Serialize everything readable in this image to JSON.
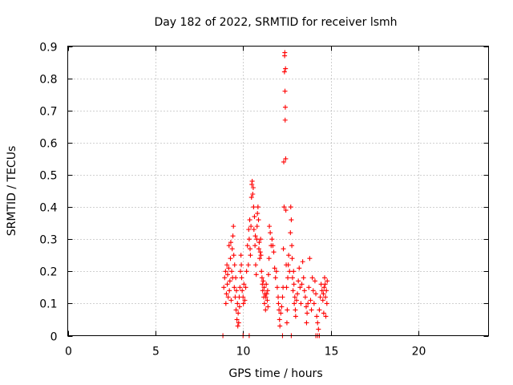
{
  "chart_data": {
    "type": "scatter",
    "title": "Day 182 of 2022, SRMTID for receiver lsmh",
    "xlabel": "GPS time / hours",
    "ylabel": "SRMTID / TECUs",
    "xlim": [
      0,
      24
    ],
    "ylim": [
      0,
      0.9
    ],
    "xticks": [
      "0",
      "5",
      "10",
      "15",
      "20"
    ],
    "xtick_values": [
      0,
      5,
      10,
      15,
      20
    ],
    "yticks": [
      "0",
      "0.1",
      "0.2",
      "0.3",
      "0.4",
      "0.5",
      "0.6",
      "0.7",
      "0.8",
      "0.9"
    ],
    "ytick_values": [
      0,
      0.1,
      0.2,
      0.3,
      0.4,
      0.5,
      0.6,
      0.7,
      0.8,
      0.9
    ],
    "grid": true,
    "marker": "+",
    "color": "#ff0000",
    "series": [
      {
        "name": "SRMTID",
        "points": [
          [
            8.9,
            0.15
          ],
          [
            8.95,
            0.18
          ],
          [
            9.0,
            0.2
          ],
          [
            9.02,
            0.1
          ],
          [
            9.05,
            0.13
          ],
          [
            9.08,
            0.22
          ],
          [
            9.1,
            0.16
          ],
          [
            9.12,
            0.19
          ],
          [
            9.15,
            0.12
          ],
          [
            9.18,
            0.21
          ],
          [
            9.2,
            0.28
          ],
          [
            9.22,
            0.14
          ],
          [
            9.25,
            0.17
          ],
          [
            9.28,
            0.24
          ],
          [
            9.3,
            0.29
          ],
          [
            9.32,
            0.11
          ],
          [
            9.35,
            0.2
          ],
          [
            9.38,
            0.27
          ],
          [
            9.4,
            0.18
          ],
          [
            9.42,
            0.31
          ],
          [
            9.45,
            0.34
          ],
          [
            9.47,
            0.25
          ],
          [
            9.5,
            0.15
          ],
          [
            9.52,
            0.22
          ],
          [
            9.55,
            0.12
          ],
          [
            9.58,
            0.18
          ],
          [
            9.6,
            0.08
          ],
          [
            9.62,
            0.14
          ],
          [
            9.65,
            0.05
          ],
          [
            9.68,
            0.1
          ],
          [
            9.7,
            0.03
          ],
          [
            9.72,
            0.07
          ],
          [
            9.75,
            0.04
          ],
          [
            9.78,
            0.12
          ],
          [
            9.8,
            0.09
          ],
          [
            9.82,
            0.15
          ],
          [
            9.85,
            0.2
          ],
          [
            9.88,
            0.25
          ],
          [
            9.9,
            0.22
          ],
          [
            9.92,
            0.18
          ],
          [
            9.95,
            0.14
          ],
          [
            10.0,
            0.12
          ],
          [
            10.02,
            0.1
          ],
          [
            10.05,
            0.16
          ],
          [
            10.1,
            0.11
          ],
          [
            10.15,
            0.15
          ],
          [
            10.2,
            0.2
          ],
          [
            10.25,
            0.28
          ],
          [
            10.3,
            0.22
          ],
          [
            10.32,
            0.33
          ],
          [
            10.35,
            0.3
          ],
          [
            10.38,
            0.36
          ],
          [
            10.4,
            0.27
          ],
          [
            10.42,
            0.25
          ],
          [
            10.45,
            0.34
          ],
          [
            10.48,
            0.43
          ],
          [
            10.5,
            0.47
          ],
          [
            10.52,
            0.48
          ],
          [
            10.55,
            0.44
          ],
          [
            10.58,
            0.46
          ],
          [
            10.6,
            0.4
          ],
          [
            10.62,
            0.33
          ],
          [
            10.65,
            0.37
          ],
          [
            10.68,
            0.28
          ],
          [
            10.7,
            0.31
          ],
          [
            10.72,
            0.22
          ],
          [
            10.75,
            0.19
          ],
          [
            10.78,
            0.3
          ],
          [
            10.8,
            0.34
          ],
          [
            10.82,
            0.38
          ],
          [
            10.85,
            0.4
          ],
          [
            10.88,
            0.36
          ],
          [
            10.9,
            0.27
          ],
          [
            10.92,
            0.29
          ],
          [
            10.95,
            0.24
          ],
          [
            10.98,
            0.26
          ],
          [
            11.0,
            0.3
          ],
          [
            11.02,
            0.25
          ],
          [
            11.05,
            0.2
          ],
          [
            11.08,
            0.18
          ],
          [
            11.1,
            0.16
          ],
          [
            11.12,
            0.14
          ],
          [
            11.15,
            0.17
          ],
          [
            11.18,
            0.12
          ],
          [
            11.2,
            0.15
          ],
          [
            11.22,
            0.1
          ],
          [
            11.25,
            0.13
          ],
          [
            11.28,
            0.08
          ],
          [
            11.3,
            0.12
          ],
          [
            11.32,
            0.16
          ],
          [
            11.35,
            0.13
          ],
          [
            11.38,
            0.11
          ],
          [
            11.4,
            0.14
          ],
          [
            11.42,
            0.09
          ],
          [
            11.45,
            0.19
          ],
          [
            11.48,
            0.24
          ],
          [
            11.5,
            0.34
          ],
          [
            11.55,
            0.32
          ],
          [
            11.6,
            0.28
          ],
          [
            11.65,
            0.3
          ],
          [
            11.7,
            0.28
          ],
          [
            11.75,
            0.26
          ],
          [
            11.8,
            0.21
          ],
          [
            11.85,
            0.18
          ],
          [
            11.9,
            0.2
          ],
          [
            11.95,
            0.15
          ],
          [
            12.0,
            0.12
          ],
          [
            12.02,
            0.1
          ],
          [
            12.05,
            0.08
          ],
          [
            12.08,
            0.05
          ],
          [
            12.1,
            0.03
          ],
          [
            12.15,
            0.07
          ],
          [
            12.2,
            0.09
          ],
          [
            12.25,
            0.12
          ],
          [
            12.28,
            0.15
          ],
          [
            12.3,
            0.27
          ],
          [
            12.32,
            0.54
          ],
          [
            12.34,
            0.4
          ],
          [
            12.36,
            0.82
          ],
          [
            12.37,
            0.87
          ],
          [
            12.38,
            0.88
          ],
          [
            12.39,
            0.76
          ],
          [
            12.4,
            0.67
          ],
          [
            12.41,
            0.71
          ],
          [
            12.42,
            0.83
          ],
          [
            12.43,
            0.55
          ],
          [
            12.44,
            0.39
          ],
          [
            12.46,
            0.22
          ],
          [
            12.48,
            0.15
          ],
          [
            12.5,
            0.04
          ],
          [
            12.52,
            0.08
          ],
          [
            12.55,
            0.18
          ],
          [
            12.58,
            0.22
          ],
          [
            12.6,
            0.25
          ],
          [
            12.65,
            0.2
          ],
          [
            12.7,
            0.32
          ],
          [
            12.72,
            0.4
          ],
          [
            12.75,
            0.36
          ],
          [
            12.78,
            0.28
          ],
          [
            12.8,
            0.24
          ],
          [
            12.82,
            0.18
          ],
          [
            12.85,
            0.14
          ],
          [
            12.88,
            0.2
          ],
          [
            12.9,
            0.16
          ],
          [
            12.92,
            0.1
          ],
          [
            12.95,
            0.12
          ],
          [
            12.98,
            0.08
          ],
          [
            13.0,
            0.06
          ],
          [
            13.05,
            0.11
          ],
          [
            13.1,
            0.13
          ],
          [
            13.15,
            0.17
          ],
          [
            13.2,
            0.21
          ],
          [
            13.25,
            0.15
          ],
          [
            13.3,
            0.1
          ],
          [
            13.35,
            0.16
          ],
          [
            13.4,
            0.23
          ],
          [
            13.45,
            0.18
          ],
          [
            13.5,
            0.14
          ],
          [
            13.55,
            0.12
          ],
          [
            13.6,
            0.09
          ],
          [
            13.62,
            0.04
          ],
          [
            13.65,
            0.07
          ],
          [
            13.7,
            0.1
          ],
          [
            13.75,
            0.15
          ],
          [
            13.8,
            0.24
          ],
          [
            13.85,
            0.11
          ],
          [
            13.9,
            0.08
          ],
          [
            13.95,
            0.18
          ],
          [
            14.0,
            0.14
          ],
          [
            14.05,
            0.1
          ],
          [
            14.1,
            0.17
          ],
          [
            14.15,
            0.13
          ],
          [
            14.2,
            0.06
          ],
          [
            14.25,
            0.04
          ],
          [
            14.3,
            0.02
          ],
          [
            14.35,
            0.08
          ],
          [
            14.4,
            0.12
          ],
          [
            14.45,
            0.16
          ],
          [
            14.5,
            0.14
          ],
          [
            14.55,
            0.11
          ],
          [
            14.58,
            0.13
          ],
          [
            14.6,
            0.07
          ],
          [
            14.62,
            0.15
          ],
          [
            14.65,
            0.18
          ],
          [
            14.68,
            0.16
          ],
          [
            14.7,
            0.12
          ],
          [
            14.72,
            0.06
          ],
          [
            14.75,
            0.14
          ],
          [
            14.78,
            0.1
          ],
          [
            14.8,
            0.17
          ],
          [
            8.85,
            0.0
          ],
          [
            10.0,
            0.0
          ],
          [
            10.35,
            0.0
          ],
          [
            12.25,
            0.0
          ],
          [
            12.75,
            0.0
          ],
          [
            14.15,
            0.0
          ],
          [
            14.25,
            0.0
          ],
          [
            14.35,
            0.0
          ]
        ]
      }
    ]
  }
}
